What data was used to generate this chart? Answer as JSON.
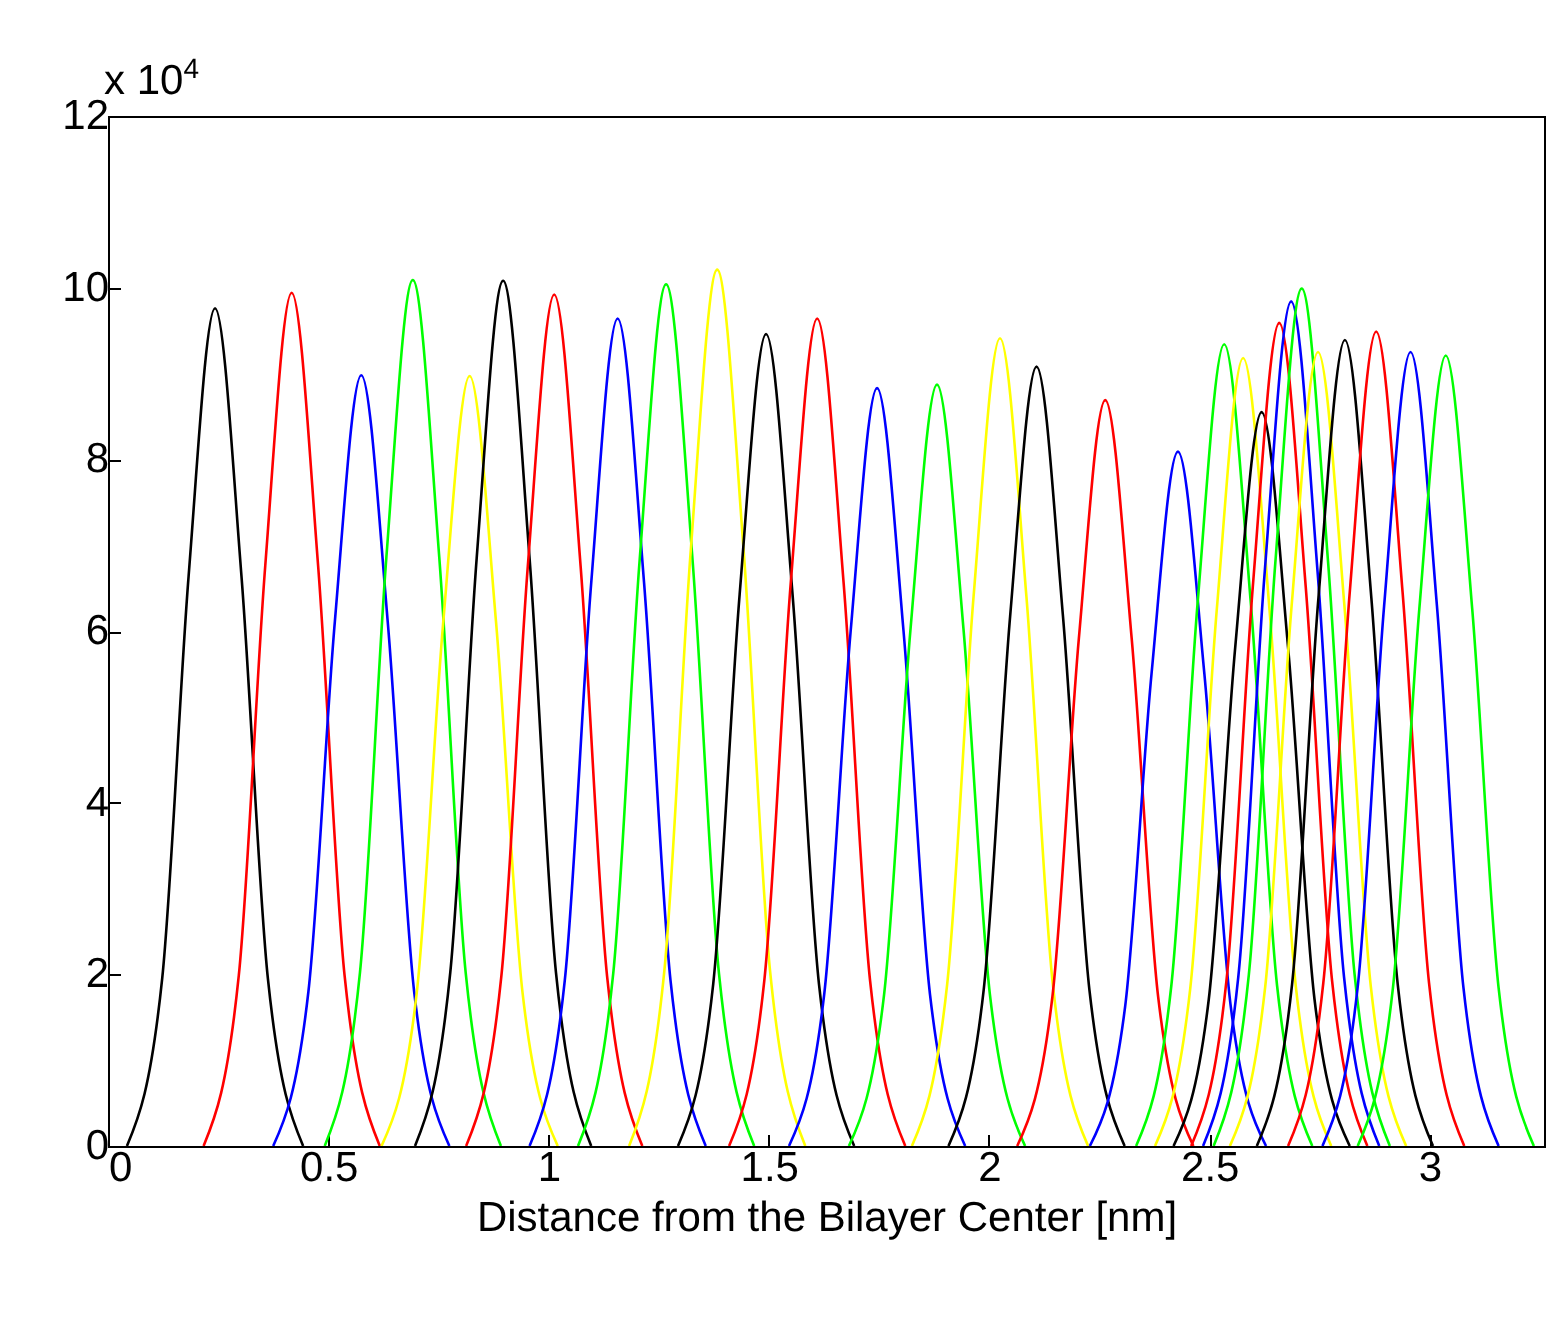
{
  "chart_data": {
    "type": "line",
    "xlabel": "Distance from the Bilayer Center [nm]",
    "annotations": [
      "x 10$^{4}$"
    ],
    "xlim": [
      0,
      3.26
    ],
    "xticks": [
      0,
      0.5,
      1,
      1.5,
      2,
      2.5,
      3
    ],
    "ylim": [
      0,
      12
    ],
    "yticks": [
      0,
      2,
      4,
      6,
      8,
      10,
      12
    ],
    "grid": false,
    "line_style": "solid",
    "series": [
      {
        "color": "#000000",
        "x": [
          0.043,
          0.123,
          0.183,
          0.243,
          0.303,
          0.363,
          0.443
        ],
        "values": [
          0,
          1.95,
          6.64,
          9.76,
          6.64,
          1.95,
          0
        ]
      },
      {
        "color": "#ff0000",
        "x": [
          0.217,
          0.297,
          0.357,
          0.417,
          0.477,
          0.537,
          0.617
        ],
        "values": [
          0,
          1.99,
          6.76,
          9.94,
          6.76,
          1.99,
          0
        ]
      },
      {
        "color": "#0000ff",
        "x": [
          0.375,
          0.455,
          0.515,
          0.575,
          0.635,
          0.695,
          0.775
        ],
        "values": [
          0,
          1.8,
          6.11,
          8.98,
          6.11,
          1.8,
          0
        ]
      },
      {
        "color": "#00ff00",
        "x": [
          0.492,
          0.572,
          0.632,
          0.692,
          0.752,
          0.812,
          0.892
        ],
        "values": [
          0,
          2.02,
          6.86,
          10.09,
          6.86,
          2.02,
          0
        ]
      },
      {
        "color": "#ffff00",
        "x": [
          0.621,
          0.701,
          0.761,
          0.821,
          0.881,
          0.941,
          1.021
        ],
        "values": [
          0,
          1.79,
          6.1,
          8.97,
          6.1,
          1.79,
          0
        ]
      },
      {
        "color": "#000000",
        "x": [
          0.697,
          0.777,
          0.837,
          0.897,
          0.957,
          1.017,
          1.097
        ],
        "values": [
          0,
          2.02,
          6.85,
          10.08,
          6.85,
          2.02,
          0
        ]
      },
      {
        "color": "#ff0000",
        "x": [
          0.813,
          0.893,
          0.953,
          1.013,
          1.073,
          1.133,
          1.213
        ],
        "values": [
          0,
          1.98,
          6.75,
          9.92,
          6.75,
          1.98,
          0
        ]
      },
      {
        "color": "#0000ff",
        "x": [
          0.957,
          1.037,
          1.097,
          1.157,
          1.217,
          1.277,
          1.357
        ],
        "values": [
          0,
          1.93,
          6.56,
          9.64,
          6.56,
          1.93,
          0
        ]
      },
      {
        "color": "#00ff00",
        "x": [
          1.067,
          1.147,
          1.207,
          1.267,
          1.327,
          1.387,
          1.467
        ],
        "values": [
          0,
          2.01,
          6.83,
          10.04,
          6.83,
          2.01,
          0
        ]
      },
      {
        "color": "#ffff00",
        "x": [
          1.183,
          1.263,
          1.323,
          1.383,
          1.443,
          1.503,
          1.583
        ],
        "values": [
          0,
          2.04,
          6.94,
          10.21,
          6.94,
          2.04,
          0
        ]
      },
      {
        "color": "#000000",
        "x": [
          1.294,
          1.374,
          1.434,
          1.494,
          1.554,
          1.614,
          1.694
        ],
        "values": [
          0,
          1.89,
          6.43,
          9.46,
          6.43,
          1.89,
          0
        ]
      },
      {
        "color": "#ff0000",
        "x": [
          1.41,
          1.49,
          1.55,
          1.61,
          1.67,
          1.73,
          1.81
        ],
        "values": [
          0,
          1.93,
          6.56,
          9.64,
          6.56,
          1.93,
          0
        ]
      },
      {
        "color": "#0000ff",
        "x": [
          1.546,
          1.626,
          1.686,
          1.746,
          1.806,
          1.866,
          1.946
        ],
        "values": [
          0,
          1.77,
          6.0,
          8.83,
          6.0,
          1.77,
          0
        ]
      },
      {
        "color": "#00ff00",
        "x": [
          1.682,
          1.762,
          1.822,
          1.882,
          1.942,
          2.002,
          2.082
        ],
        "values": [
          0,
          1.77,
          6.03,
          8.87,
          6.03,
          1.77,
          0
        ]
      },
      {
        "color": "#ffff00",
        "x": [
          1.825,
          1.905,
          1.965,
          2.025,
          2.085,
          2.145,
          2.225
        ],
        "values": [
          0,
          1.88,
          6.4,
          9.41,
          6.4,
          1.88,
          0
        ]
      },
      {
        "color": "#000000",
        "x": [
          1.908,
          1.988,
          2.048,
          2.108,
          2.168,
          2.228,
          2.308
        ],
        "values": [
          0,
          1.82,
          6.17,
          9.08,
          6.17,
          1.82,
          0
        ]
      },
      {
        "color": "#ff0000",
        "x": [
          2.064,
          2.144,
          2.204,
          2.264,
          2.324,
          2.384,
          2.464
        ],
        "values": [
          0,
          1.74,
          5.91,
          8.69,
          5.91,
          1.74,
          0
        ]
      },
      {
        "color": "#0000ff",
        "x": [
          2.229,
          2.309,
          2.369,
          2.429,
          2.489,
          2.549,
          2.629
        ],
        "values": [
          0,
          1.62,
          5.5,
          8.09,
          5.5,
          1.62,
          0
        ]
      },
      {
        "color": "#00ff00",
        "x": [
          2.334,
          2.414,
          2.474,
          2.534,
          2.594,
          2.654,
          2.734
        ],
        "values": [
          0,
          1.87,
          6.35,
          9.34,
          6.35,
          1.87,
          0
        ]
      },
      {
        "color": "#ffff00",
        "x": [
          2.377,
          2.457,
          2.517,
          2.577,
          2.637,
          2.697,
          2.777
        ],
        "values": [
          0,
          1.84,
          6.24,
          9.18,
          6.24,
          1.84,
          0
        ]
      },
      {
        "color": "#000000",
        "x": [
          2.419,
          2.499,
          2.559,
          2.619,
          2.679,
          2.739,
          2.819
        ],
        "values": [
          0,
          1.71,
          5.81,
          8.55,
          5.81,
          1.71,
          0
        ]
      },
      {
        "color": "#ff0000",
        "x": [
          2.459,
          2.539,
          2.599,
          2.659,
          2.719,
          2.779,
          2.859
        ],
        "values": [
          0,
          1.92,
          6.52,
          9.59,
          6.52,
          1.92,
          0
        ]
      },
      {
        "color": "#0000ff",
        "x": [
          2.486,
          2.566,
          2.626,
          2.686,
          2.746,
          2.806,
          2.886
        ],
        "values": [
          0,
          1.97,
          6.69,
          9.84,
          6.69,
          1.97,
          0
        ]
      },
      {
        "color": "#00ff00",
        "x": [
          2.51,
          2.59,
          2.65,
          2.71,
          2.77,
          2.83,
          2.91
        ],
        "values": [
          0,
          2.0,
          6.79,
          9.99,
          6.79,
          2.0,
          0
        ]
      },
      {
        "color": "#ffff00",
        "x": [
          2.547,
          2.627,
          2.687,
          2.747,
          2.807,
          2.867,
          2.947
        ],
        "values": [
          0,
          1.85,
          6.29,
          9.25,
          6.29,
          1.85,
          0
        ]
      },
      {
        "color": "#000000",
        "x": [
          2.608,
          2.688,
          2.748,
          2.808,
          2.868,
          2.928,
          3.008
        ],
        "values": [
          0,
          1.88,
          6.39,
          9.39,
          6.39,
          1.88,
          0
        ]
      },
      {
        "color": "#ff0000",
        "x": [
          2.679,
          2.759,
          2.819,
          2.879,
          2.939,
          2.999,
          3.079
        ],
        "values": [
          0,
          1.9,
          6.45,
          9.49,
          6.45,
          1.9,
          0
        ]
      },
      {
        "color": "#0000ff",
        "x": [
          2.757,
          2.837,
          2.897,
          2.957,
          3.017,
          3.077,
          3.157
        ],
        "values": [
          0,
          1.85,
          6.29,
          9.25,
          6.29,
          1.85,
          0
        ]
      },
      {
        "color": "#00ff00",
        "x": [
          2.837,
          2.917,
          2.977,
          3.037,
          3.097,
          3.157,
          3.237
        ],
        "values": [
          0,
          1.84,
          6.26,
          9.21,
          6.26,
          1.84,
          0
        ]
      }
    ]
  }
}
